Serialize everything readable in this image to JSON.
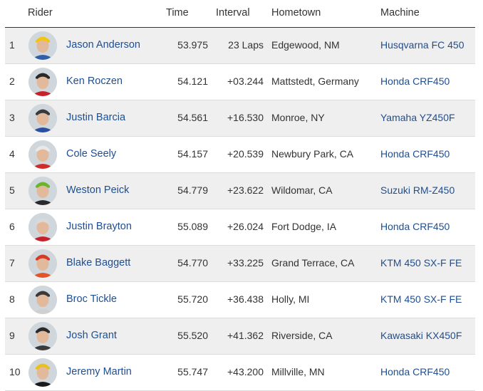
{
  "headers": {
    "rider": "Rider",
    "time": "Time",
    "interval": "Interval",
    "hometown": "Hometown",
    "machine": "Machine"
  },
  "colors": {
    "link": "#1f4e91",
    "stripe": "#efefef"
  },
  "rows": [
    {
      "pos": "1",
      "name": "Jason Anderson",
      "time": "53.975",
      "interval": "23 Laps",
      "hometown": "Edgewood, NM",
      "machine": "Husqvarna FC 450",
      "jersey": "#2f5fa8",
      "helmet": "#f2c418"
    },
    {
      "pos": "2",
      "name": "Ken Roczen",
      "time": "54.121",
      "interval": "+03.244",
      "hometown": "Mattstedt, Germany",
      "machine": "Honda CRF450",
      "jersey": "#c8202a",
      "helmet": "#2a2a2a"
    },
    {
      "pos": "3",
      "name": "Justin Barcia",
      "time": "54.561",
      "interval": "+16.530",
      "hometown": "Monroe, NY",
      "machine": "Yamaha YZ450F",
      "jersey": "#2b4f9e",
      "helmet": "#3a3a3a"
    },
    {
      "pos": "4",
      "name": "Cole Seely",
      "time": "54.157",
      "interval": "+20.539",
      "hometown": "Newbury Park, CA",
      "machine": "Honda CRF450",
      "jersey": "#d12a2a",
      "helmet": "#e8e8e8"
    },
    {
      "pos": "5",
      "name": "Weston Peick",
      "time": "54.779",
      "interval": "+23.622",
      "hometown": "Wildomar, CA",
      "machine": "Suzuki RM-Z450",
      "jersey": "#2a2a2a",
      "helmet": "#6ab42e"
    },
    {
      "pos": "6",
      "name": "Justin Brayton",
      "time": "55.089",
      "interval": "+26.024",
      "hometown": "Fort Dodge, IA",
      "machine": "Honda CRF450",
      "jersey": "#c8202a",
      "helmet": "#d9d9d9"
    },
    {
      "pos": "7",
      "name": "Blake Baggett",
      "time": "54.770",
      "interval": "+33.225",
      "hometown": "Grand Terrace, CA",
      "machine": "KTM 450 SX-F FE",
      "jersey": "#e0562a",
      "helmet": "#d43a2a"
    },
    {
      "pos": "8",
      "name": "Broc Tickle",
      "time": "55.720",
      "interval": "+36.438",
      "hometown": "Holly, MI",
      "machine": "KTM 450 SX-F FE",
      "jersey": "#d0d0d0",
      "helmet": "#3a3a3a"
    },
    {
      "pos": "9",
      "name": "Josh Grant",
      "time": "55.520",
      "interval": "+41.362",
      "hometown": "Riverside, CA",
      "machine": "Kawasaki KX450F",
      "jersey": "#3a3a3a",
      "helmet": "#2a2a2a"
    },
    {
      "pos": "10",
      "name": "Jeremy Martin",
      "time": "55.747",
      "interval": "+43.200",
      "hometown": "Millville, MN",
      "machine": "Honda CRF450",
      "jersey": "#1a1a1a",
      "helmet": "#e8c020"
    }
  ]
}
